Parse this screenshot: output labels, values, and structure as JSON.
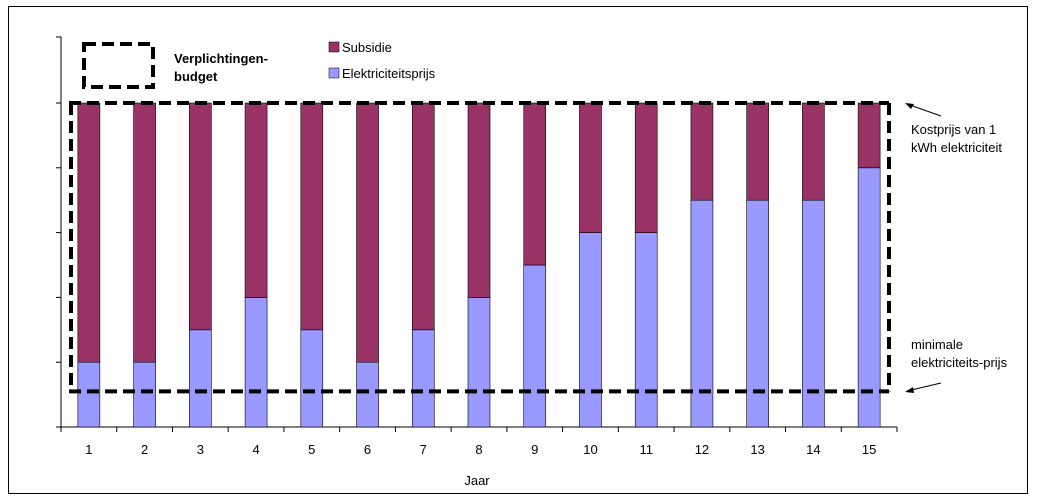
{
  "chart_data": {
    "type": "bar",
    "stacked": true,
    "xlabel": "Jaar",
    "ylabel": "",
    "ylim": [
      0,
      5
    ],
    "categories": [
      "1",
      "2",
      "3",
      "4",
      "5",
      "6",
      "7",
      "8",
      "9",
      "10",
      "11",
      "12",
      "13",
      "14",
      "15"
    ],
    "series": [
      {
        "name": "Elektriciteitsprijs",
        "color": "#9999ff",
        "values": [
          1,
          1,
          1.5,
          2,
          1.5,
          1,
          1.5,
          2,
          2.5,
          3,
          3,
          3.5,
          3.5,
          3.5,
          4
        ]
      },
      {
        "name": "Subsidie",
        "color": "#993366",
        "values": [
          4,
          4,
          3.5,
          3,
          3.5,
          4,
          3.5,
          3,
          2.5,
          2,
          2,
          1.5,
          1.5,
          1.5,
          1
        ]
      }
    ],
    "legend_box_label_line1": "Verplichtingen-",
    "legend_box_label_line2": "budget",
    "annotations": {
      "top_line1": "Kostprijs van 1",
      "top_line2": "kWh elektriciteit",
      "bottom_line1": "minimale",
      "bottom_line2": "elektriciteits-prijs"
    },
    "reference_lines": {
      "top": 5,
      "bottom": 0.55
    },
    "grid": false,
    "legend_position": "top"
  }
}
